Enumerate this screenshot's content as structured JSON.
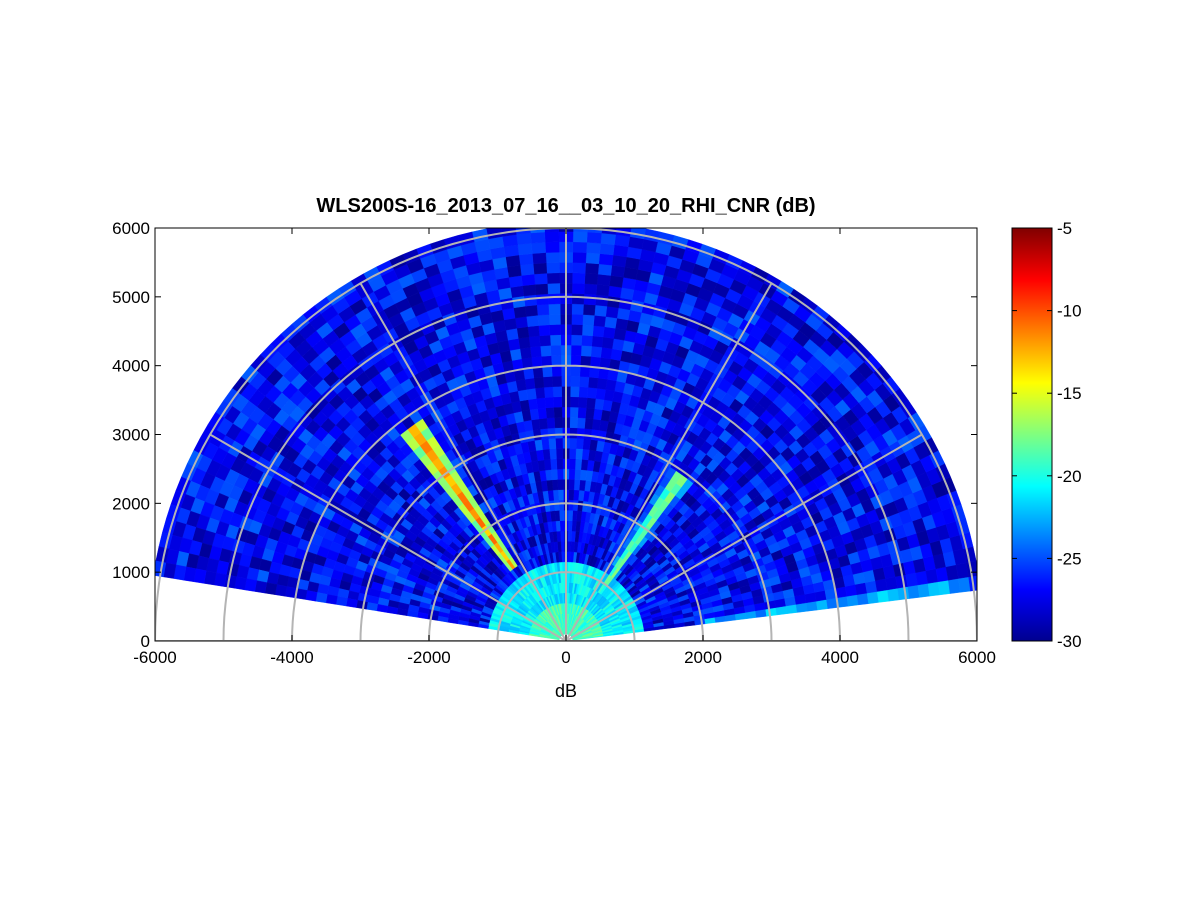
{
  "chart_data": {
    "type": "heatmap",
    "subtype": "polar-rhi-scan",
    "title": "WLS200S-16_2013_07_16__03_10_20_RHI_CNR (dB)",
    "xlabel": "dB",
    "ylabel": "",
    "xlim": [
      -6000,
      6000
    ],
    "ylim": [
      0,
      6000
    ],
    "x_ticks": [
      -6000,
      -4000,
      -2000,
      0,
      2000,
      4000,
      6000
    ],
    "y_ticks": [
      0,
      1000,
      2000,
      3000,
      4000,
      5000,
      6000
    ],
    "colorbar": {
      "colormap": "jet",
      "range": [
        -30,
        -5
      ],
      "ticks": [
        -5,
        -10,
        -15,
        -20,
        -25,
        -30
      ]
    },
    "polar_grid": {
      "range_rings": [
        1000,
        2000,
        3000,
        4000,
        5000,
        6000
      ],
      "spokes_deg": [
        0,
        30,
        60,
        90,
        120,
        150,
        180
      ],
      "color": "#b4b4b4"
    },
    "scan": {
      "elevation_min_deg": 7,
      "elevation_max_deg": 171,
      "max_range": 6000,
      "background_cnr_db": -27,
      "near_range_cnr_db": -21,
      "features": [
        {
          "elevation_deg": 126,
          "range_from": 1300,
          "range_to": 3800,
          "peak_cnr_db": -12
        },
        {
          "elevation_deg": 55,
          "range_from": 900,
          "range_to": 2900,
          "peak_cnr_db": -17
        },
        {
          "elevation_deg": 7,
          "range_from": 2000,
          "range_to": 6000,
          "peak_cnr_db": -21
        }
      ]
    },
    "grid": false,
    "legend": "none"
  }
}
